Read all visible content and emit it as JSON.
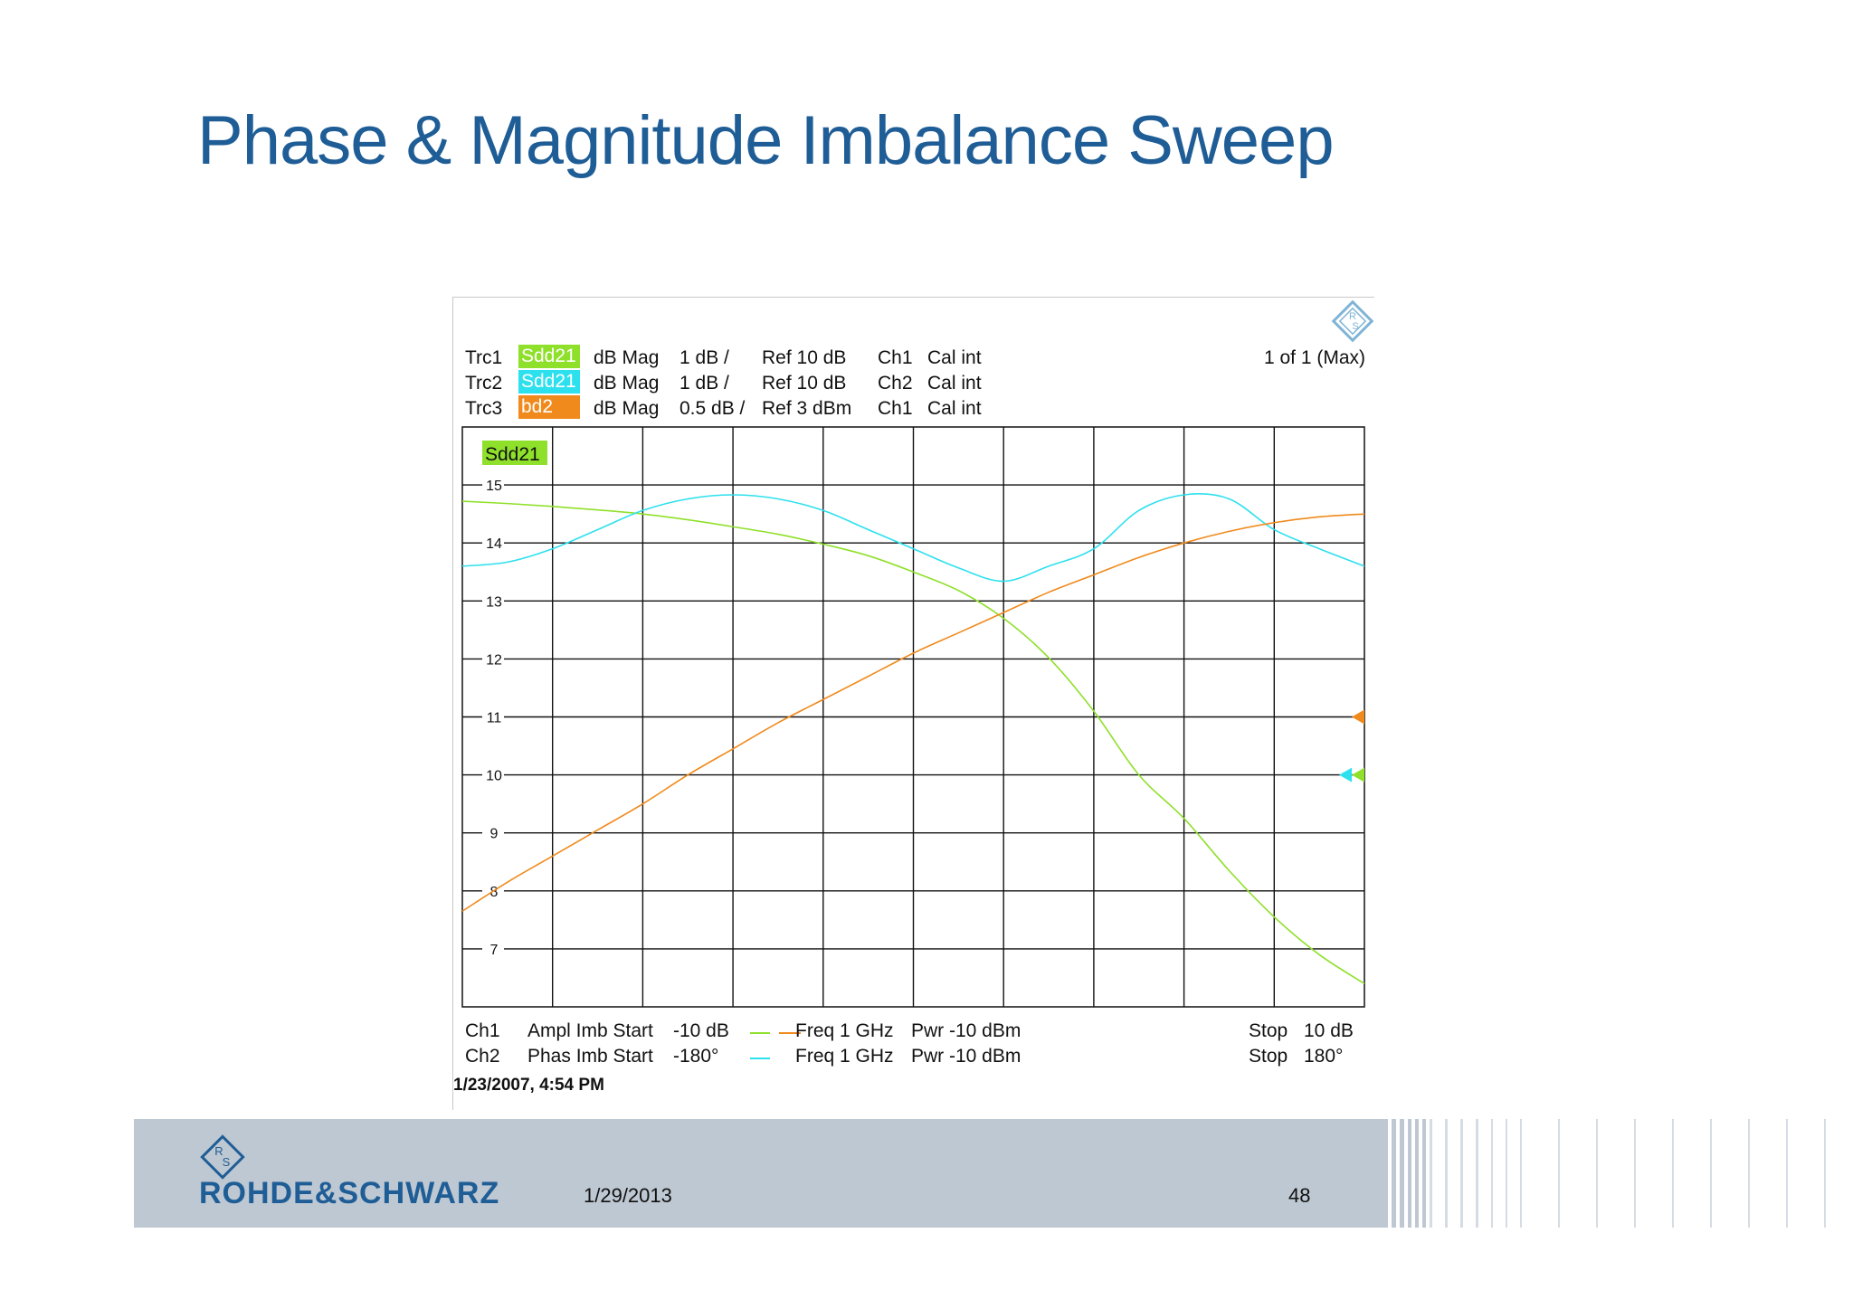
{
  "slide": {
    "title": "Phase & Magnitude Imbalance Sweep",
    "footer_brand": "ROHDE&SCHWARZ",
    "footer_date": "1/29/2013",
    "page_number": "48"
  },
  "screen": {
    "page_indicator": "1 of 1 (Max)",
    "timestamp": "1/23/2007, 4:54 PM",
    "traces": [
      {
        "name": "Trc1",
        "label": "Sdd21",
        "format": "dB Mag",
        "scale": "1 dB /",
        "ref": "Ref 10 dB",
        "channel": "Ch1",
        "cal": "Cal int",
        "color": "#8fe02a"
      },
      {
        "name": "Trc2",
        "label": "Sdd21",
        "format": "dB Mag",
        "scale": "1 dB /",
        "ref": "Ref 10 dB",
        "channel": "Ch2",
        "cal": "Cal int",
        "color": "#2de0ee"
      },
      {
        "name": "Trc3",
        "label": "bd2",
        "format": "dB Mag",
        "scale": "0.5 dB /",
        "ref": "Ref 3 dBm",
        "channel": "Ch1",
        "cal": "Cal int",
        "color": "#f08a1c"
      }
    ],
    "channels": [
      {
        "channel": "Ch1",
        "sweep": "Ampl Imb Start",
        "start": "-10 dB",
        "freq": "Freq 1 GHz",
        "pwr": "Pwr -10 dBm",
        "stop_label": "Stop",
        "stop": "10 dB"
      },
      {
        "channel": "Ch2",
        "sweep": "Phas Imb Start",
        "start": "-180°",
        "freq": "Freq 1 GHz",
        "pwr": "Pwr -10 dBm",
        "stop_label": "Stop",
        "stop": "180°"
      }
    ]
  },
  "chart_data": {
    "type": "line",
    "title": "",
    "active_trace_label": "Sdd21",
    "ylabel": "",
    "xlabel": "",
    "ylim": [
      6,
      16
    ],
    "xlim": [
      0,
      10
    ],
    "yticks": [
      15,
      14,
      13,
      12,
      11,
      10,
      9,
      8,
      7
    ],
    "ytick_labels": [
      "15",
      "14",
      "13",
      "12",
      "11",
      "10",
      "9",
      "8",
      "7"
    ],
    "x_divisions": 10,
    "grid": true,
    "series": [
      {
        "name": "Sdd21 (Ch1 Ampl Imb)",
        "color": "#8fe02a",
        "x": [
          0,
          0.5,
          1,
          1.5,
          2,
          2.5,
          3,
          3.5,
          4,
          4.5,
          5,
          5.5,
          6,
          6.5,
          7,
          7.5,
          8,
          8.5,
          9,
          9.5,
          10
        ],
        "y": [
          14.72,
          14.68,
          14.63,
          14.57,
          14.5,
          14.4,
          14.28,
          14.15,
          13.98,
          13.78,
          13.5,
          13.18,
          12.7,
          12.02,
          11.1,
          10.0,
          9.25,
          8.35,
          7.55,
          6.9,
          6.4
        ]
      },
      {
        "name": "Sdd21 (Ch2 Phas Imb)",
        "color": "#2de0ee",
        "x": [
          0,
          0.5,
          1,
          1.5,
          2,
          2.5,
          3,
          3.5,
          4,
          4.5,
          5,
          5.5,
          6,
          6.5,
          7,
          7.5,
          8,
          8.5,
          9,
          9.5,
          10
        ],
        "y": [
          13.6,
          13.67,
          13.9,
          14.23,
          14.56,
          14.76,
          14.83,
          14.76,
          14.56,
          14.23,
          13.9,
          13.57,
          13.34,
          13.6,
          13.9,
          14.56,
          14.83,
          14.76,
          14.23,
          13.9,
          13.6
        ]
      },
      {
        "name": "bd2",
        "color": "#f08a1c",
        "x": [
          0,
          0.5,
          1,
          1.5,
          2,
          2.5,
          3,
          3.5,
          4,
          4.5,
          5,
          5.5,
          6,
          6.5,
          7,
          7.5,
          8,
          8.5,
          9,
          9.5,
          10
        ],
        "y": [
          7.65,
          8.15,
          8.6,
          9.05,
          9.5,
          10.0,
          10.45,
          10.9,
          11.3,
          11.7,
          12.1,
          12.45,
          12.8,
          13.15,
          13.45,
          13.75,
          14.0,
          14.2,
          14.35,
          14.45,
          14.5
        ]
      }
    ]
  }
}
